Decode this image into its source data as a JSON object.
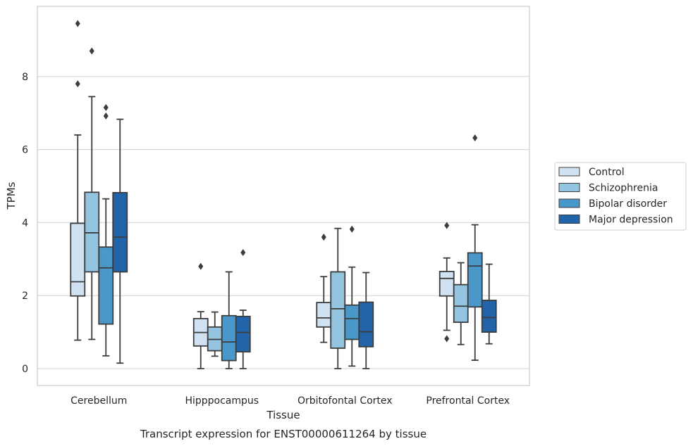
{
  "chart_data": {
    "type": "box",
    "title": "",
    "caption": "Transcript expression for ENST00000611264 by tissue",
    "xlabel": "Tissue",
    "ylabel": "TPMs",
    "ylim": [
      -0.45,
      9.75
    ],
    "yticks": [
      0,
      2,
      4,
      6,
      8
    ],
    "grid": true,
    "legend_position": "right",
    "categories": [
      "Cerebellum",
      "Hipppocampus",
      "Orbitofontal Cortex",
      "Prefrontal Cortex"
    ],
    "series": [
      {
        "name": "Control",
        "color": "#d0e1f2",
        "boxes": [
          {
            "min": 0.78,
            "q1": 1.99,
            "median": 2.38,
            "q3": 3.98,
            "max": 6.4,
            "outliers": [
              7.8,
              9.45
            ]
          },
          {
            "min": 0.0,
            "q1": 0.62,
            "median": 0.99,
            "q3": 1.37,
            "max": 1.56,
            "outliers": [
              2.8
            ]
          },
          {
            "min": 0.72,
            "q1": 1.14,
            "median": 1.39,
            "q3": 1.81,
            "max": 2.52,
            "outliers": [
              3.6
            ]
          },
          {
            "min": 1.05,
            "q1": 1.99,
            "median": 2.47,
            "q3": 2.66,
            "max": 3.03,
            "outliers": [
              0.82,
              3.92
            ]
          }
        ]
      },
      {
        "name": "Schizophrenia",
        "color": "#94c4df",
        "boxes": [
          {
            "min": 0.8,
            "q1": 2.65,
            "median": 3.72,
            "q3": 4.83,
            "max": 7.45,
            "outliers": [
              8.7
            ]
          },
          {
            "min": 0.34,
            "q1": 0.49,
            "median": 0.8,
            "q3": 1.14,
            "max": 1.55,
            "outliers": []
          },
          {
            "min": 0.0,
            "q1": 0.56,
            "median": 1.64,
            "q3": 2.65,
            "max": 3.84,
            "outliers": []
          },
          {
            "min": 0.66,
            "q1": 1.27,
            "median": 1.71,
            "q3": 2.3,
            "max": 2.9,
            "outliers": []
          }
        ]
      },
      {
        "name": "Bipolar disorder",
        "color": "#4a98c9",
        "boxes": [
          {
            "min": 0.35,
            "q1": 1.22,
            "median": 2.76,
            "q3": 3.33,
            "max": 4.65,
            "outliers": [
              6.92,
              7.15
            ]
          },
          {
            "min": 0.0,
            "q1": 0.22,
            "median": 0.73,
            "q3": 1.45,
            "max": 2.65,
            "outliers": []
          },
          {
            "min": 0.07,
            "q1": 0.8,
            "median": 1.37,
            "q3": 1.74,
            "max": 2.78,
            "outliers": [
              3.82
            ]
          },
          {
            "min": 0.23,
            "q1": 1.69,
            "median": 2.81,
            "q3": 3.17,
            "max": 3.94,
            "outliers": [
              6.32
            ]
          }
        ]
      },
      {
        "name": "Major depression",
        "color": "#2264aa",
        "boxes": [
          {
            "min": 0.15,
            "q1": 2.65,
            "median": 3.6,
            "q3": 4.82,
            "max": 6.83,
            "outliers": []
          },
          {
            "min": 0.0,
            "q1": 0.46,
            "median": 0.99,
            "q3": 1.43,
            "max": 1.6,
            "outliers": [
              3.18
            ]
          },
          {
            "min": 0.0,
            "q1": 0.6,
            "median": 1.01,
            "q3": 1.82,
            "max": 2.63,
            "outliers": []
          },
          {
            "min": 0.68,
            "q1": 1.0,
            "median": 1.4,
            "q3": 1.87,
            "max": 2.86,
            "outliers": []
          }
        ]
      }
    ]
  }
}
